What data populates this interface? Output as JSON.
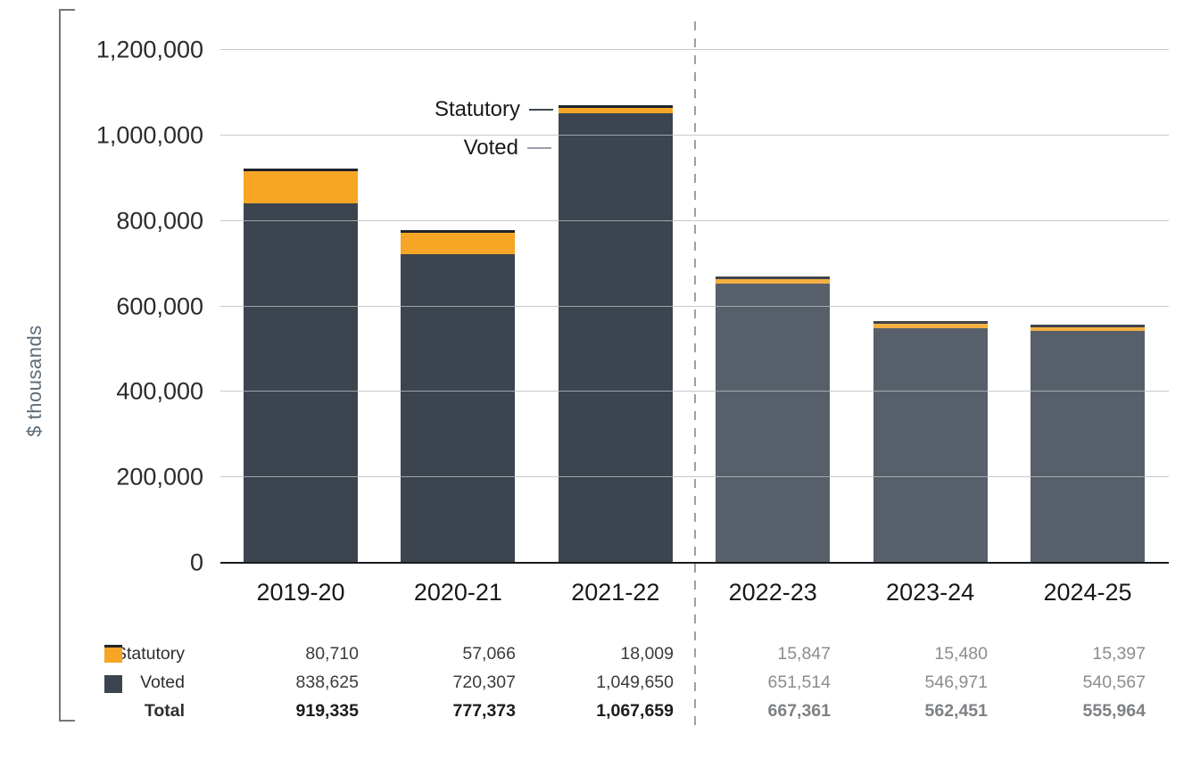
{
  "chart_data": {
    "type": "bar",
    "stacked": true,
    "ylabel": "$ thousands",
    "ylim": [
      0,
      1200000
    ],
    "ytick_step": 200000,
    "ytick_labels": [
      "0",
      "200,000",
      "400,000",
      "600,000",
      "800,000",
      "1,000,000",
      "1,200,000"
    ],
    "grid": "horizontal",
    "categories": [
      "2019-20",
      "2020-21",
      "2021-22",
      "2022-23",
      "2023-24",
      "2024-25"
    ],
    "forecast_start_index": 3,
    "series": [
      {
        "name": "Statutory",
        "values": [
          80710,
          57066,
          18009,
          15847,
          15480,
          15397
        ]
      },
      {
        "name": "Voted",
        "values": [
          838625,
          720307,
          1049650,
          651514,
          546971,
          540567
        ]
      }
    ],
    "totals": [
      919335,
      777373,
      1067659,
      667361,
      562451,
      555964
    ],
    "annotations": [
      {
        "target": "Statutory"
      },
      {
        "target": "Voted"
      }
    ],
    "table": {
      "rows": [
        {
          "label": "Statutory",
          "swatch": "statutory",
          "bold": false,
          "values": [
            "80,710",
            "57,066",
            "18,009",
            "15,847",
            "15,480",
            "15,397"
          ]
        },
        {
          "label": "Voted",
          "swatch": "voted",
          "bold": false,
          "values": [
            "838,625",
            "720,307",
            "1,049,650",
            "651,514",
            "546,971",
            "540,567"
          ]
        },
        {
          "label": "Total",
          "swatch": null,
          "bold": true,
          "values": [
            "919,335",
            "777,373",
            "1,067,659",
            "667,361",
            "562,451",
            "555,964"
          ]
        }
      ]
    },
    "colors": {
      "statutory": "#F6A525",
      "voted": "#3C454F",
      "statutory_forecast": "#F4AF42",
      "voted_forecast": "#57606A",
      "cap": "#1F242A",
      "cap_forecast": "#3E444B",
      "actual_text": "#3A3B3D",
      "forecast_text": "#8A8D90",
      "total_actual_text": "#1B1C1E",
      "total_forecast_text": "#7E8184",
      "dashed_line": "#9AA0A6",
      "ylabel_text": "#5D6C79"
    }
  }
}
